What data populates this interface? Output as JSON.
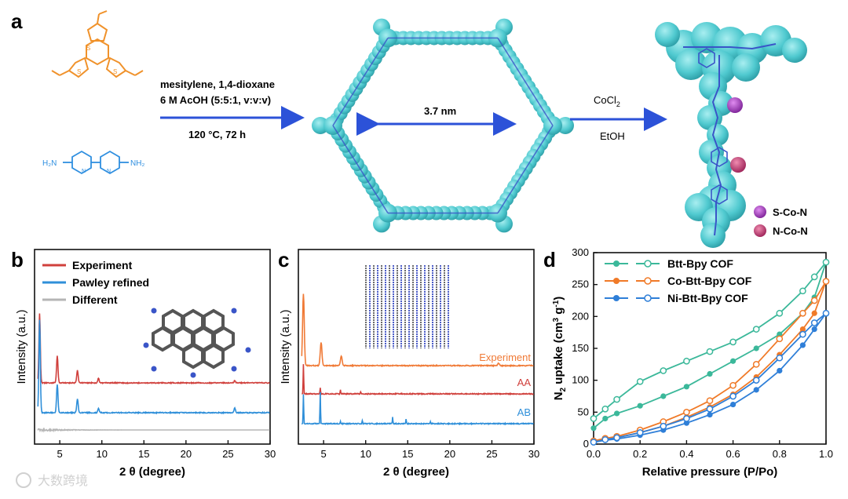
{
  "panel_a": {
    "label": "a",
    "conditions_line1": "mesitylene, 1,4-dioxane",
    "conditions_line2": "6 M AcOH (5:5:1, v:v:v)",
    "conditions_line3": "120 °C, 72 h",
    "pore_size": "3.7 nm",
    "reagent_main": "CoCl",
    "reagent_sub": "2",
    "solvent": "EtOH",
    "amine_nh2_left": "H₂N",
    "amine_nh2_right": "NH₂",
    "legend": [
      {
        "label": "S-Co-N",
        "color": "#9b2fb5"
      },
      {
        "label": "N-Co-N",
        "color": "#c23a6e"
      }
    ]
  },
  "colors": {
    "aldehyde": "#f0922b",
    "amine": "#2f8fe0",
    "arrow": "#2c52d8",
    "framework": "#4fc9cf",
    "framework_dark": "#3a55c8"
  },
  "watermark": "大数跨境",
  "chart_data": [
    {
      "panel": "b",
      "type": "line",
      "xlabel": "2 θ (degree)",
      "ylabel": "Intensity (a.u.)",
      "xlim": [
        2,
        30
      ],
      "x_ticks": [
        "5",
        "10",
        "15",
        "20",
        "25",
        "30"
      ],
      "legend_position": "top-left",
      "series": [
        {
          "name": "Experiment",
          "color": "#d0403c",
          "peaks": [
            2.6,
            4.7,
            7.1,
            9.6,
            25.8
          ]
        },
        {
          "name": "Pawley refined",
          "color": "#2f8fd9",
          "peaks": [
            2.6,
            4.7,
            7.1,
            9.6,
            25.8
          ]
        },
        {
          "name": "Different",
          "color": "#b5b5b5",
          "peaks": []
        }
      ]
    },
    {
      "panel": "c",
      "type": "line",
      "xlabel": "2 θ (degree)",
      "ylabel": "Intensity (a.u.)",
      "xlim": [
        2,
        30
      ],
      "x_ticks": [
        "5",
        "10",
        "15",
        "20",
        "25",
        "30"
      ],
      "series": [
        {
          "name": "Experiment",
          "color": "#f07a36",
          "peaks": [
            2.6,
            4.7,
            7.1,
            25.8
          ]
        },
        {
          "name": "AA",
          "color": "#d0403c",
          "peaks": [
            2.6,
            4.6,
            7.0,
            9.4
          ]
        },
        {
          "name": "AB",
          "color": "#2f8fd9",
          "peaks": [
            2.6,
            4.6,
            7.0,
            9.6,
            13.2,
            14.8,
            17.7
          ]
        }
      ]
    },
    {
      "panel": "d",
      "type": "line",
      "xlabel": "Relative pressure (P/Po)",
      "ylabel": "N2 uptake (cm3 g-1)",
      "ylabel_main": "N",
      "ylabel_sub": "2",
      "ylabel_rest": " uptake (cm",
      "ylabel_sup1": "3",
      "ylabel_mid": " g",
      "ylabel_sup2": "-1",
      "ylabel_end": ")",
      "xlim": [
        0,
        1.0
      ],
      "ylim": [
        0,
        300
      ],
      "x_ticks": [
        "0.0",
        "0.2",
        "0.4",
        "0.6",
        "0.8",
        "1.0"
      ],
      "y_ticks": [
        "0",
        "50",
        "100",
        "150",
        "200",
        "250",
        "300"
      ],
      "legend_position": "top-left",
      "x": [
        0.0,
        0.05,
        0.1,
        0.2,
        0.3,
        0.4,
        0.5,
        0.6,
        0.7,
        0.8,
        0.9,
        0.95,
        1.0
      ],
      "series": [
        {
          "name": "Btt-Bpy COF",
          "color": "#3bb89a",
          "adsorption": [
            25,
            40,
            48,
            60,
            75,
            90,
            110,
            130,
            150,
            172,
            205,
            230,
            285
          ],
          "desorption": [
            40,
            55,
            70,
            98,
            115,
            130,
            145,
            160,
            180,
            205,
            240,
            262,
            285
          ]
        },
        {
          "name": "Co-Btt-Bpy COF",
          "color": "#f07a28",
          "adsorption": [
            5,
            8,
            10,
            18,
            28,
            42,
            58,
            78,
            105,
            140,
            180,
            205,
            255
          ],
          "desorption": [
            5,
            9,
            12,
            22,
            35,
            50,
            68,
            92,
            125,
            165,
            205,
            225,
            255
          ]
        },
        {
          "name": "Ni-Btt-Bpy COF",
          "color": "#2f7fd8",
          "adsorption": [
            3,
            6,
            8,
            14,
            22,
            33,
            46,
            62,
            85,
            115,
            155,
            180,
            205
          ],
          "desorption": [
            3,
            7,
            10,
            18,
            28,
            40,
            55,
            75,
            100,
            135,
            172,
            190,
            205
          ]
        }
      ]
    }
  ]
}
